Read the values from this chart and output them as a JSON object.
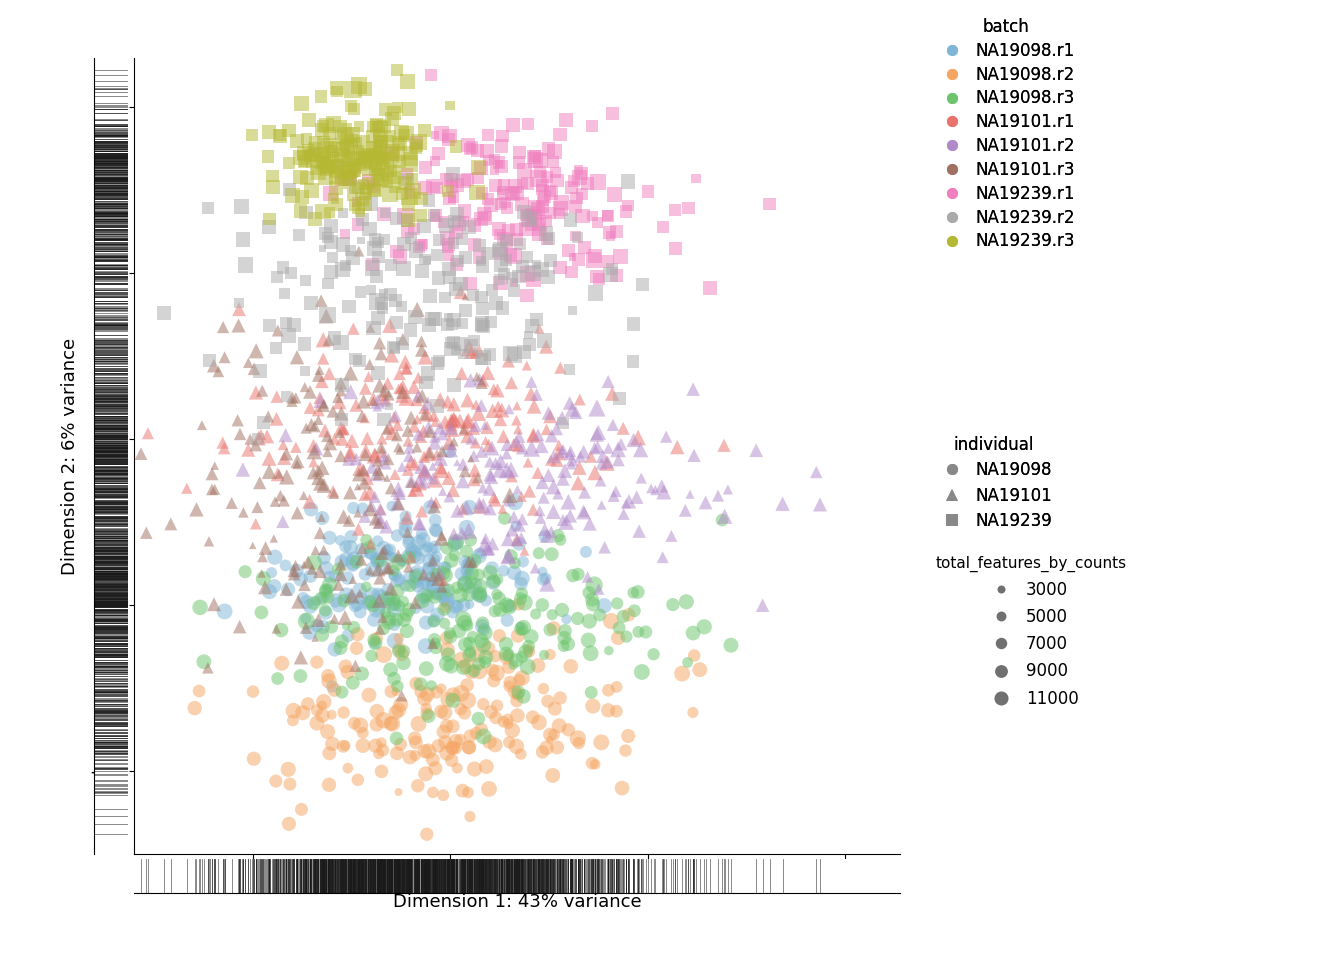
{
  "batches": {
    "NA19098.r1": {
      "color": "#7EB5D5",
      "individual": "NA19098",
      "marker": "o",
      "n": 200,
      "pc1_mean": -5,
      "pc1_std": 9,
      "pc2_mean": -4.2,
      "pc2_std": 1.0,
      "size_mean": 7000,
      "size_std": 1800
    },
    "NA19098.r2": {
      "color": "#F5A461",
      "individual": "NA19098",
      "marker": "o",
      "n": 200,
      "pc1_mean": 0,
      "pc1_std": 12,
      "pc2_mean": -8.5,
      "pc2_std": 1.4,
      "size_mean": 7000,
      "size_std": 1800
    },
    "NA19098.r3": {
      "color": "#6BC46B",
      "individual": "NA19098",
      "marker": "o",
      "n": 200,
      "pc1_mean": 2,
      "pc1_std": 13,
      "pc2_mean": -5.5,
      "pc2_std": 1.2,
      "size_mean": 7000,
      "size_std": 1800
    },
    "NA19101.r1": {
      "color": "#E8716B",
      "individual": "NA19101",
      "marker": "^",
      "n": 200,
      "pc1_mean": -3,
      "pc1_std": 12,
      "pc2_mean": 0.3,
      "pc2_std": 1.5,
      "size_mean": 6500,
      "size_std": 1800
    },
    "NA19101.r2": {
      "color": "#B088C9",
      "individual": "NA19101",
      "marker": "^",
      "n": 200,
      "pc1_mean": 8,
      "pc1_std": 13,
      "pc2_mean": -1.2,
      "pc2_std": 1.5,
      "size_mean": 6500,
      "size_std": 1800
    },
    "NA19101.r3": {
      "color": "#A07060",
      "individual": "NA19101",
      "marker": "^",
      "n": 200,
      "pc1_mean": -13,
      "pc1_std": 9,
      "pc2_mean": -1.5,
      "pc2_std": 2.5,
      "size_mean": 5500,
      "size_std": 1800
    },
    "NA19239.r1": {
      "color": "#F07EBF",
      "individual": "NA19239",
      "marker": "s",
      "n": 200,
      "pc1_mean": 8,
      "pc1_std": 10,
      "pc2_mean": 7.2,
      "pc2_std": 1.2,
      "size_mean": 6500,
      "size_std": 1800
    },
    "NA19239.r2": {
      "color": "#AAAAAA",
      "individual": "NA19239",
      "marker": "s",
      "n": 200,
      "pc1_mean": -2,
      "pc1_std": 12,
      "pc2_mean": 4.5,
      "pc2_std": 1.8,
      "size_mean": 6500,
      "size_std": 1800
    },
    "NA19239.r3": {
      "color": "#B5B832",
      "individual": "NA19239",
      "marker": "s",
      "n": 200,
      "pc1_mean": -12,
      "pc1_std": 5,
      "pc2_mean": 8.5,
      "pc2_std": 0.9,
      "size_mean": 7000,
      "size_std": 1800
    }
  },
  "batch_colors": {
    "NA19098.r1": "#7EB5D5",
    "NA19098.r2": "#F5A461",
    "NA19098.r3": "#6BC46B",
    "NA19101.r1": "#E8716B",
    "NA19101.r2": "#B088C9",
    "NA19101.r3": "#A07060",
    "NA19239.r1": "#F07EBF",
    "NA19239.r2": "#AAAAAA",
    "NA19239.r3": "#B5B832"
  },
  "xlabel": "Dimension 1: 43% variance",
  "ylabel": "Dimension 2: 6% variance",
  "xlim": [
    -40,
    57
  ],
  "ylim": [
    -12.5,
    11.5
  ],
  "alpha": 0.5,
  "background_color": "#ffffff",
  "rug_color": "#1a1a1a",
  "rug_alpha": 0.6,
  "rug_lw": 0.6,
  "xticks": [
    -25,
    0,
    25,
    50
  ],
  "yticks": [
    -10,
    -5,
    0,
    5,
    10
  ],
  "size_legend_values": [
    3000,
    5000,
    7000,
    9000,
    11000
  ],
  "size_scale_factor": 0.012,
  "font_size": 12
}
